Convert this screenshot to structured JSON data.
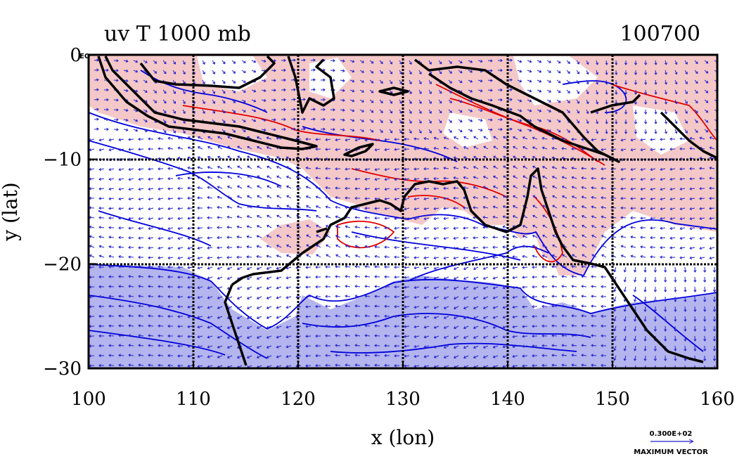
{
  "chart_data": {
    "type": "contour",
    "title": "uv T 1000 mb",
    "subtitle": "100700",
    "xlabel": "x (lon)",
    "ylabel": "y (lat)",
    "xlim": [
      100,
      160
    ],
    "ylim": [
      -30,
      0
    ],
    "x_ticks": [
      100,
      110,
      120,
      130,
      140,
      150,
      160
    ],
    "y_ticks": [
      0,
      -10,
      -20,
      -30
    ],
    "x_tick_labels": [
      "100",
      "110",
      "120",
      "130",
      "140",
      "150",
      "160"
    ],
    "y_tick_labels": [
      "0",
      "−10",
      "−20",
      "−30"
    ],
    "corner_label": "EQ",
    "grid": true,
    "vector_legend": {
      "value": "0.300E+02",
      "label": "MAXIMUM VECTOR"
    },
    "colors": {
      "warm_fill": "#f4c8c8",
      "cold_fill": "#b4b4ee",
      "warm_contour": "#e00000",
      "cold_contour": "#0000dd",
      "vectors": "#2222cc",
      "coast": "#000000"
    }
  }
}
